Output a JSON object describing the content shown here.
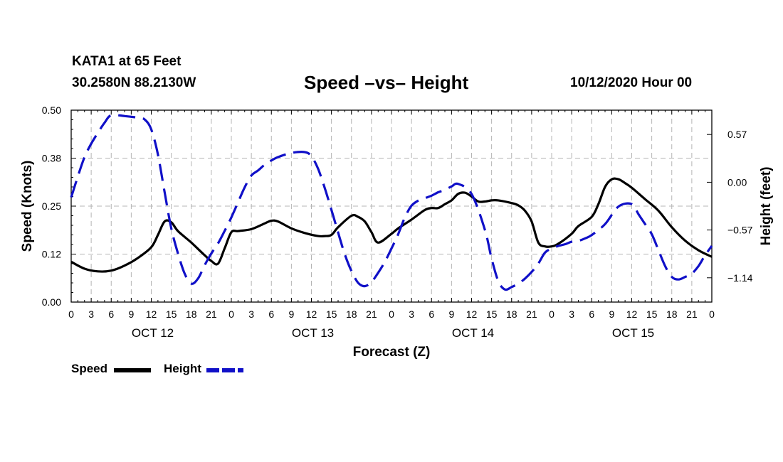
{
  "header": {
    "station": "KATA1 at 65 Feet",
    "coords": "30.2580N 88.2130W",
    "title": "Speed –vs– Height",
    "run_time": "10/12/2020 Hour 00"
  },
  "legend": {
    "speed_label": "Speed",
    "height_label": "Height"
  },
  "colors": {
    "speed": "#000000",
    "height": "#1010c8",
    "grid": "#b4b4b4"
  },
  "chart_data": {
    "type": "line",
    "title": "Speed –vs– Height",
    "xlabel": "Forecast (Z)",
    "ylabel": "Speed (Knots)",
    "y2label": "Height (feet)",
    "x_range": [
      0,
      96
    ],
    "ylim": [
      0,
      0.5
    ],
    "y2lim": [
      -1.43,
      0.86
    ],
    "y_ticks": [
      0,
      0.125,
      0.25,
      0.375,
      0.5
    ],
    "y_tick_labels": [
      "0.00",
      "0.12",
      "0.25",
      "0.38",
      "0.50"
    ],
    "y2_ticks": [
      -1.14,
      -0.57,
      0.0,
      0.57
    ],
    "y2_tick_labels": [
      "−1.14",
      "−0.57",
      "0.00",
      "0.57"
    ],
    "x_ticks": [
      0,
      3,
      6,
      9,
      12,
      15,
      18,
      21,
      24,
      27,
      30,
      33,
      36,
      39,
      42,
      45,
      48,
      51,
      54,
      57,
      60,
      63,
      66,
      69,
      72,
      75,
      78,
      81,
      84,
      87,
      90,
      93,
      96
    ],
    "x_tick_labels": [
      "0",
      "3",
      "6",
      "9",
      "12",
      "15",
      "18",
      "21",
      "0",
      "3",
      "6",
      "9",
      "12",
      "15",
      "18",
      "21",
      "0",
      "3",
      "6",
      "9",
      "12",
      "15",
      "18",
      "21",
      "0",
      "3",
      "6",
      "9",
      "12",
      "15",
      "18",
      "21",
      "0"
    ],
    "date_labels": [
      {
        "x": 12,
        "label": "OCT 12"
      },
      {
        "x": 36,
        "label": "OCT 13"
      },
      {
        "x": 60,
        "label": "OCT 14"
      },
      {
        "x": 84,
        "label": "OCT 15"
      }
    ],
    "grid": true,
    "series": [
      {
        "name": "Speed",
        "axis": "left",
        "style": "solid",
        "x": [
          0,
          2,
          4,
          6,
          8,
          10,
          12,
          13,
          14,
          15,
          16,
          18,
          20,
          21,
          22,
          23,
          24,
          25,
          27,
          29,
          30,
          31,
          33,
          35,
          37,
          38,
          39,
          40,
          42,
          43,
          44,
          45,
          46,
          48,
          49,
          51,
          53,
          54,
          55,
          56,
          57,
          58,
          59,
          60,
          61,
          62,
          63,
          64,
          66,
          67,
          68,
          69,
          70,
          71,
          72,
          73,
          75,
          76,
          78,
          79,
          80,
          81,
          82,
          83,
          84,
          86,
          88,
          90,
          92,
          94,
          96
        ],
        "values": [
          0.105,
          0.087,
          0.08,
          0.082,
          0.095,
          0.115,
          0.143,
          0.175,
          0.21,
          0.208,
          0.185,
          0.155,
          0.122,
          0.107,
          0.1,
          0.14,
          0.182,
          0.185,
          0.19,
          0.205,
          0.212,
          0.21,
          0.192,
          0.18,
          0.172,
          0.172,
          0.175,
          0.195,
          0.225,
          0.222,
          0.21,
          0.182,
          0.155,
          0.178,
          0.192,
          0.215,
          0.24,
          0.245,
          0.245,
          0.255,
          0.265,
          0.282,
          0.285,
          0.275,
          0.262,
          0.262,
          0.265,
          0.265,
          0.258,
          0.252,
          0.238,
          0.21,
          0.155,
          0.145,
          0.145,
          0.152,
          0.178,
          0.198,
          0.222,
          0.255,
          0.3,
          0.32,
          0.32,
          0.31,
          0.298,
          0.268,
          0.238,
          0.195,
          0.16,
          0.135,
          0.118
        ]
      },
      {
        "name": "Height",
        "axis": "right",
        "style": "dashed",
        "x": [
          0,
          1,
          2,
          3,
          4,
          5,
          6,
          8,
          10,
          11,
          12,
          13,
          14,
          15,
          16,
          17,
          18,
          19,
          20,
          21,
          22,
          23,
          24,
          25,
          26,
          27,
          28,
          29,
          30,
          31,
          33,
          35,
          36,
          37,
          38,
          39,
          40,
          41,
          42,
          43,
          44,
          45,
          46,
          47,
          48,
          49,
          50,
          51,
          52,
          53,
          54,
          55,
          56,
          57,
          58,
          60,
          62,
          63,
          64,
          65,
          66,
          67,
          68,
          69,
          70,
          71,
          72,
          73,
          74,
          75,
          76,
          77,
          78,
          80,
          82,
          84,
          85,
          86,
          87,
          88,
          89,
          90,
          91,
          92,
          93,
          94,
          95,
          96
        ],
        "values": [
          -0.18,
          0.07,
          0.3,
          0.46,
          0.59,
          0.71,
          0.8,
          0.79,
          0.77,
          0.75,
          0.63,
          0.33,
          -0.12,
          -0.55,
          -0.85,
          -1.09,
          -1.21,
          -1.15,
          -0.99,
          -0.85,
          -0.73,
          -0.58,
          -0.42,
          -0.24,
          -0.06,
          0.08,
          0.14,
          0.21,
          0.26,
          0.3,
          0.35,
          0.36,
          0.31,
          0.16,
          -0.07,
          -0.33,
          -0.6,
          -0.86,
          -1.06,
          -1.2,
          -1.24,
          -1.19,
          -1.08,
          -0.95,
          -0.79,
          -0.62,
          -0.42,
          -0.28,
          -0.22,
          -0.19,
          -0.16,
          -0.12,
          -0.09,
          -0.05,
          -0.02,
          -0.14,
          -0.57,
          -0.91,
          -1.18,
          -1.28,
          -1.25,
          -1.21,
          -1.15,
          -1.07,
          -0.97,
          -0.84,
          -0.79,
          -0.76,
          -0.74,
          -0.71,
          -0.7,
          -0.67,
          -0.63,
          -0.5,
          -0.29,
          -0.26,
          -0.38,
          -0.5,
          -0.62,
          -0.81,
          -1.0,
          -1.13,
          -1.16,
          -1.13,
          -1.09,
          -1.0,
          -0.87,
          -0.76
        ]
      }
    ]
  }
}
